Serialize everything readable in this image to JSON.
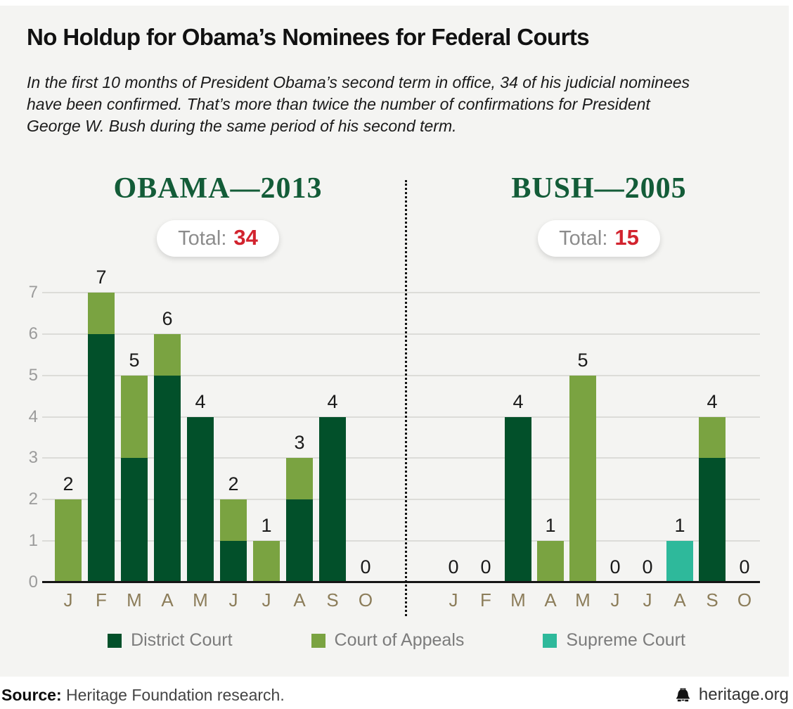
{
  "header": {
    "title": "No Holdup for Obama’s Nominees for Federal Courts",
    "subtitle_lines": [
      "In the first 10 months of President Obama’s second term in office, 34 of his judicial nominees",
      "have been confirmed. That’s more than twice the number of confirmations for President",
      "George W. Bush during the same period of his second term."
    ]
  },
  "colors": {
    "district_green": "#02502a",
    "appeals_green": "#7aa341",
    "supreme_teal": "#2eb99b",
    "total_red": "#d2232e",
    "heading_green": "#135c38",
    "month_label_tan": "#8c7d5a",
    "panel_background": "#f4f4f2"
  },
  "chart_data": {
    "type": "bar",
    "stacked": true,
    "ylim": [
      0,
      7
    ],
    "yticks": [
      0,
      1,
      2,
      3,
      4,
      5,
      6,
      7
    ],
    "grid": true,
    "legend_position": "bottom",
    "months": [
      "J",
      "F",
      "M",
      "A",
      "M",
      "J",
      "J",
      "A",
      "S",
      "O"
    ],
    "series_keys": [
      "district",
      "appeals",
      "supreme"
    ],
    "legend": [
      {
        "key": "district",
        "label": "District Court",
        "color": "#02502a"
      },
      {
        "key": "appeals",
        "label": "Court of Appeals",
        "color": "#7aa341"
      },
      {
        "key": "supreme",
        "label": "Supreme Court",
        "color": "#2eb99b"
      }
    ],
    "panels": [
      {
        "title": "OBAMA—2013",
        "total_label": "Total:",
        "total": 34,
        "bars": [
          {
            "month": "J",
            "district": 0,
            "appeals": 2,
            "supreme": 0,
            "total": 2
          },
          {
            "month": "F",
            "district": 6,
            "appeals": 1,
            "supreme": 0,
            "total": 7
          },
          {
            "month": "M",
            "district": 3,
            "appeals": 2,
            "supreme": 0,
            "total": 5
          },
          {
            "month": "A",
            "district": 5,
            "appeals": 1,
            "supreme": 0,
            "total": 6
          },
          {
            "month": "M",
            "district": 4,
            "appeals": 0,
            "supreme": 0,
            "total": 4
          },
          {
            "month": "J",
            "district": 1,
            "appeals": 1,
            "supreme": 0,
            "total": 2
          },
          {
            "month": "J",
            "district": 0,
            "appeals": 1,
            "supreme": 0,
            "total": 1
          },
          {
            "month": "A",
            "district": 2,
            "appeals": 1,
            "supreme": 0,
            "total": 3
          },
          {
            "month": "S",
            "district": 4,
            "appeals": 0,
            "supreme": 0,
            "total": 4
          },
          {
            "month": "O",
            "district": 0,
            "appeals": 0,
            "supreme": 0,
            "total": 0
          }
        ]
      },
      {
        "title": "BUSH—2005",
        "total_label": "Total:",
        "total": 15,
        "bars": [
          {
            "month": "J",
            "district": 0,
            "appeals": 0,
            "supreme": 0,
            "total": 0
          },
          {
            "month": "F",
            "district": 0,
            "appeals": 0,
            "supreme": 0,
            "total": 0
          },
          {
            "month": "M",
            "district": 4,
            "appeals": 0,
            "supreme": 0,
            "total": 4
          },
          {
            "month": "A",
            "district": 0,
            "appeals": 1,
            "supreme": 0,
            "total": 1
          },
          {
            "month": "M",
            "district": 0,
            "appeals": 5,
            "supreme": 0,
            "total": 5
          },
          {
            "month": "J",
            "district": 0,
            "appeals": 0,
            "supreme": 0,
            "total": 0
          },
          {
            "month": "J",
            "district": 0,
            "appeals": 0,
            "supreme": 0,
            "total": 0
          },
          {
            "month": "A",
            "district": 0,
            "appeals": 0,
            "supreme": 1,
            "total": 1
          },
          {
            "month": "S",
            "district": 3,
            "appeals": 1,
            "supreme": 0,
            "total": 4
          },
          {
            "month": "O",
            "district": 0,
            "appeals": 0,
            "supreme": 0,
            "total": 0
          }
        ]
      }
    ]
  },
  "footer": {
    "source_label": "Source:",
    "source_text": " Heritage Foundation research.",
    "site": "heritage.org"
  }
}
